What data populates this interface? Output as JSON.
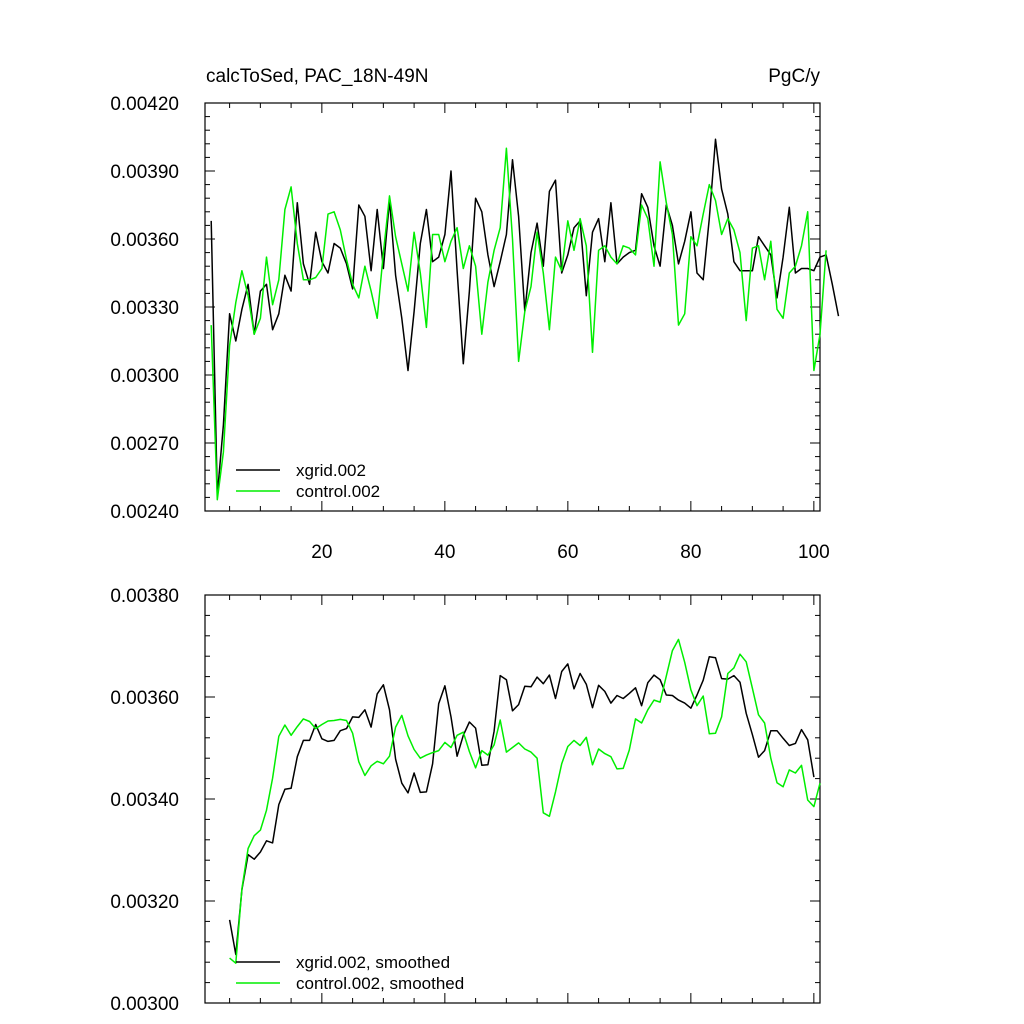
{
  "colors": {
    "xgrid": "#000000",
    "control": "#00ee00",
    "frame": "#000000",
    "background": "#ffffff"
  },
  "chart_data": [
    {
      "type": "line",
      "title": "calcToSed, PAC_18N-49N",
      "units": "PgC/y",
      "xlim": [
        1,
        101
      ],
      "ylim": [
        0.0024,
        0.0042
      ],
      "x_ticks": [
        20,
        40,
        60,
        80,
        100
      ],
      "x_tick_labels": [
        "20",
        "40",
        "60",
        "80",
        "100"
      ],
      "y_ticks": [
        0.0024,
        0.0027,
        0.003,
        0.0033,
        0.0036,
        0.0039,
        0.0042
      ],
      "y_tick_labels": [
        "0.00240",
        "0.00270",
        "0.00300",
        "0.00330",
        "0.00360",
        "0.00390",
        "0.00420"
      ],
      "legend_position": "bottom-left",
      "series": [
        {
          "name": "xgrid.002",
          "color": "#000000",
          "x_start": 2,
          "values": [
            0.00368,
            0.00247,
            0.00278,
            0.00327,
            0.00315,
            0.00329,
            0.0034,
            0.00318,
            0.00337,
            0.0034,
            0.0032,
            0.00327,
            0.00344,
            0.00337,
            0.00376,
            0.00349,
            0.0034,
            0.00363,
            0.0035,
            0.00345,
            0.00358,
            0.00356,
            0.00349,
            0.00338,
            0.00375,
            0.0037,
            0.00346,
            0.00373,
            0.00347,
            0.00377,
            0.00344,
            0.00325,
            0.00302,
            0.00328,
            0.00358,
            0.00373,
            0.0035,
            0.00352,
            0.00362,
            0.0039,
            0.00346,
            0.00305,
            0.00337,
            0.00378,
            0.00372,
            0.00353,
            0.00339,
            0.0035,
            0.00362,
            0.00395,
            0.0037,
            0.00328,
            0.00354,
            0.00367,
            0.00348,
            0.00381,
            0.00386,
            0.00345,
            0.00353,
            0.00365,
            0.00368,
            0.00335,
            0.00363,
            0.00369,
            0.0035,
            0.00376,
            0.00349,
            0.00352,
            0.00354,
            0.00355,
            0.0038,
            0.00374,
            0.00357,
            0.00348,
            0.00375,
            0.00366,
            0.00349,
            0.00359,
            0.00372,
            0.00345,
            0.00342,
            0.00369,
            0.00404,
            0.00382,
            0.00371,
            0.0035,
            0.00346,
            0.00346,
            0.00346,
            0.00361,
            0.00357,
            0.00353,
            0.00334,
            0.00352,
            0.00374,
            0.00345,
            0.00347,
            0.00347,
            0.00346,
            0.00352,
            0.00353,
            0.0034,
            0.00326
          ]
        },
        {
          "name": "control.002",
          "color": "#00ee00",
          "x_start": 2,
          "values": [
            0.00322,
            0.00245,
            0.00266,
            0.00313,
            0.00332,
            0.00346,
            0.00335,
            0.00318,
            0.00325,
            0.00352,
            0.00331,
            0.00342,
            0.00373,
            0.00383,
            0.00358,
            0.00342,
            0.00342,
            0.00343,
            0.00347,
            0.00371,
            0.00372,
            0.00364,
            0.00351,
            0.0034,
            0.00334,
            0.00348,
            0.00337,
            0.00325,
            0.00354,
            0.00379,
            0.00361,
            0.00349,
            0.00337,
            0.00363,
            0.00345,
            0.00321,
            0.00362,
            0.00362,
            0.0035,
            0.00359,
            0.00365,
            0.00347,
            0.00357,
            0.00348,
            0.00318,
            0.00341,
            0.00355,
            0.00365,
            0.004,
            0.0036,
            0.00306,
            0.00328,
            0.00339,
            0.00363,
            0.00345,
            0.0032,
            0.00352,
            0.00346,
            0.00368,
            0.00355,
            0.00369,
            0.00357,
            0.0031,
            0.00355,
            0.00357,
            0.00352,
            0.00349,
            0.00357,
            0.00356,
            0.00353,
            0.00375,
            0.00369,
            0.00348,
            0.00394,
            0.00376,
            0.00362,
            0.00322,
            0.00327,
            0.00361,
            0.00357,
            0.00371,
            0.00384,
            0.00377,
            0.00362,
            0.00369,
            0.00364,
            0.00354,
            0.00324,
            0.00356,
            0.00357,
            0.00342,
            0.00359,
            0.00329,
            0.00325,
            0.00345,
            0.00348,
            0.00357,
            0.00372,
            0.00302,
            0.00318,
            0.00355
          ]
        }
      ]
    },
    {
      "type": "line",
      "xlim": [
        1,
        101
      ],
      "ylim": [
        0.003,
        0.0038
      ],
      "y_ticks": [
        0.003,
        0.0032,
        0.0034,
        0.0036,
        0.0038
      ],
      "y_tick_labels": [
        "0.00300",
        "0.00320",
        "0.00340",
        "0.00360",
        "0.00380"
      ],
      "legend_position": "bottom-left",
      "series": [
        {
          "name": "xgrid.002, smoothed",
          "color": "#000000",
          "x_start": 5,
          "values": [
            0.003163,
            0.003095,
            0.003222,
            0.003291,
            0.003282,
            0.003296,
            0.003318,
            0.003314,
            0.003389,
            0.003419,
            0.003421,
            0.003483,
            0.003515,
            0.003515,
            0.003546,
            0.003518,
            0.003513,
            0.003515,
            0.003534,
            0.003538,
            0.003561,
            0.00356,
            0.003575,
            0.003541,
            0.003606,
            0.003624,
            0.003575,
            0.003478,
            0.003431,
            0.003412,
            0.003451,
            0.003413,
            0.003414,
            0.003469,
            0.003587,
            0.003622,
            0.003561,
            0.003484,
            0.003525,
            0.003551,
            0.003539,
            0.003466,
            0.003467,
            0.003533,
            0.003642,
            0.003634,
            0.003573,
            0.003585,
            0.003621,
            0.00362,
            0.003639,
            0.003626,
            0.003643,
            0.003597,
            0.00365,
            0.003665,
            0.003616,
            0.003646,
            0.003625,
            0.003579,
            0.003623,
            0.003611,
            0.003588,
            0.003603,
            0.003597,
            0.003607,
            0.003618,
            0.003583,
            0.003628,
            0.003643,
            0.003634,
            0.003604,
            0.003603,
            0.003594,
            0.003588,
            0.003578,
            0.003604,
            0.003633,
            0.003679,
            0.003677,
            0.003636,
            0.003635,
            0.003642,
            0.003629,
            0.003568,
            0.003526,
            0.003482,
            0.003495,
            0.003534,
            0.003534,
            0.003519,
            0.003505,
            0.003509,
            0.003536,
            0.003516,
            0.003443
          ]
        },
        {
          "name": "control.002, smoothed",
          "color": "#00ee00",
          "x_start": 5,
          "values": [
            0.003088,
            0.003078,
            0.003224,
            0.003303,
            0.003328,
            0.003339,
            0.003378,
            0.003441,
            0.003523,
            0.003545,
            0.003525,
            0.003542,
            0.003557,
            0.003552,
            0.003538,
            0.003546,
            0.003553,
            0.003554,
            0.003556,
            0.003554,
            0.003529,
            0.003473,
            0.003446,
            0.003465,
            0.003474,
            0.003469,
            0.003484,
            0.003541,
            0.003564,
            0.003524,
            0.003497,
            0.00348,
            0.003486,
            0.003491,
            0.003495,
            0.003511,
            0.003501,
            0.003525,
            0.003531,
            0.003493,
            0.003461,
            0.003495,
            0.003486,
            0.003506,
            0.003555,
            0.003492,
            0.003501,
            0.00351,
            0.003498,
            0.003492,
            0.00348,
            0.003373,
            0.003366,
            0.003414,
            0.003469,
            0.003503,
            0.003515,
            0.003505,
            0.003521,
            0.003467,
            0.003498,
            0.003489,
            0.003483,
            0.003459,
            0.00346,
            0.003496,
            0.003557,
            0.003549,
            0.003575,
            0.003594,
            0.00359,
            0.003641,
            0.003691,
            0.003713,
            0.003668,
            0.003614,
            0.003583,
            0.003602,
            0.003528,
            0.003529,
            0.003561,
            0.003646,
            0.003657,
            0.003684,
            0.003669,
            0.003617,
            0.003565,
            0.003549,
            0.00348,
            0.003432,
            0.003424,
            0.003457,
            0.003451,
            0.003466,
            0.003398,
            0.003385,
            0.003431
          ]
        }
      ]
    }
  ]
}
